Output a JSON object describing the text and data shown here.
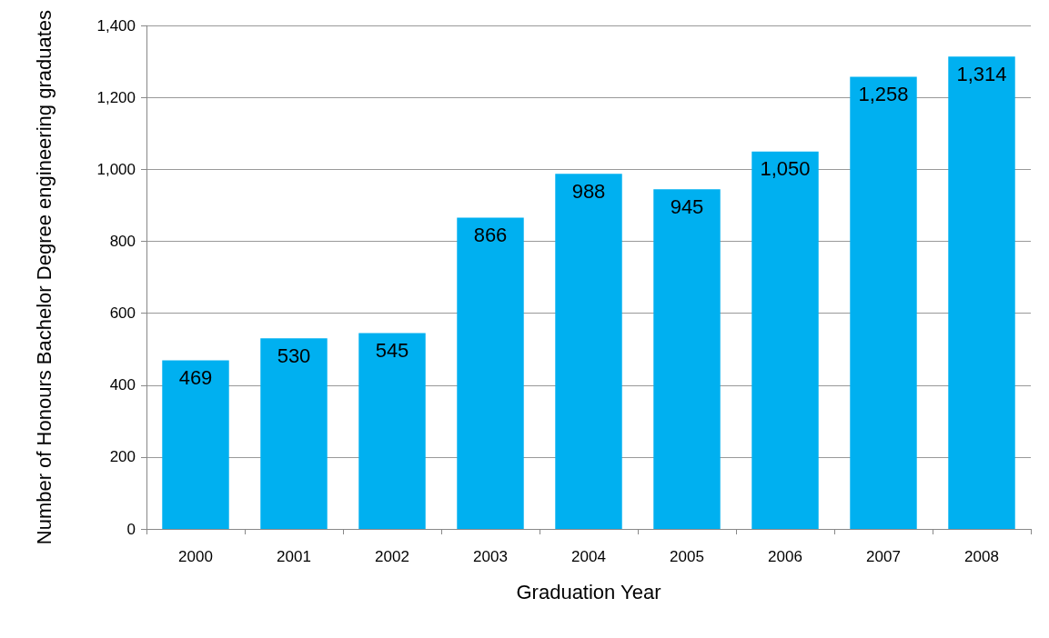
{
  "chart_data": {
    "type": "bar",
    "xlabel": "Graduation Year",
    "ylabel": "Number of Honours Bachelor Degree engineering graduates",
    "categories": [
      "2000",
      "2001",
      "2002",
      "2003",
      "2004",
      "2005",
      "2006",
      "2007",
      "2008"
    ],
    "values": [
      469,
      530,
      545,
      866,
      988,
      945,
      1050,
      1258,
      1314
    ],
    "value_labels": [
      "469",
      "530",
      "545",
      "866",
      "988",
      "945",
      "1,050",
      "1,258",
      "1,314"
    ],
    "color": "#00b0f0",
    "ylim": [
      0,
      1400
    ],
    "yticks": [
      0,
      200,
      400,
      600,
      800,
      {
        "value": 1000,
        "label": "1,000"
      },
      {
        "value": 1200,
        "label": "1,200"
      },
      {
        "value": 1400,
        "label": "1,400"
      }
    ],
    "grid": "y"
  }
}
